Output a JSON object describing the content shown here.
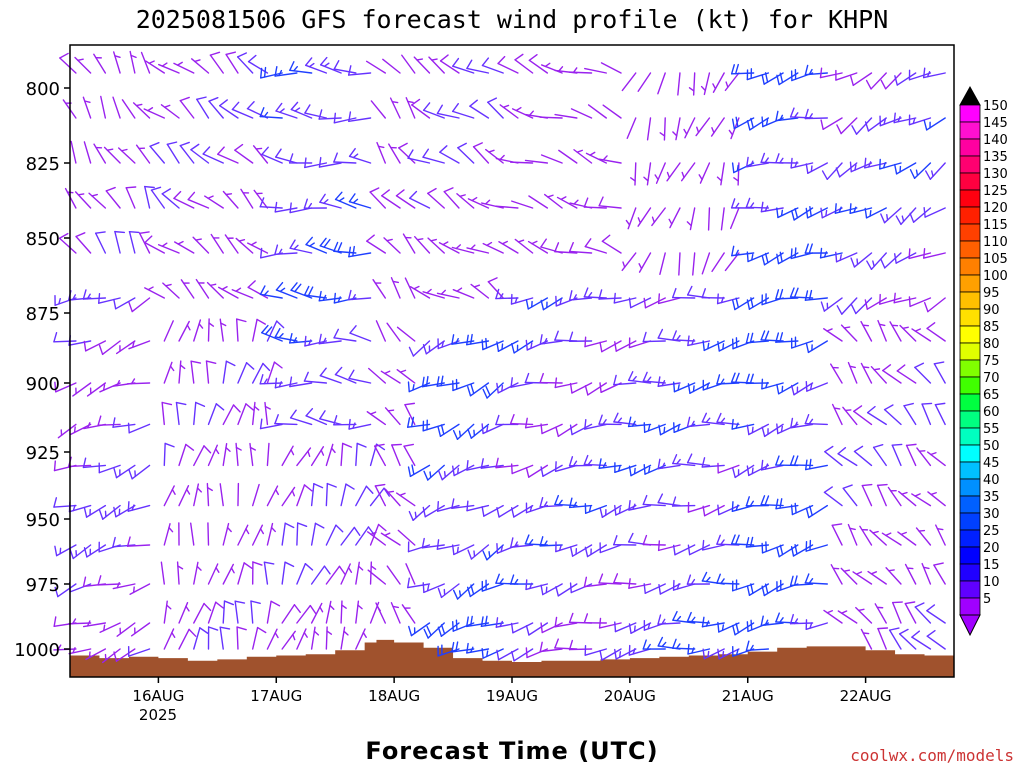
{
  "chart_data": {
    "type": "wind-barb-profile",
    "title": "2025081506 GFS forecast wind profile (kt) for KHPN",
    "xlabel": "Forecast Time (UTC)",
    "ylabel": "",
    "credit": "coolwx.com/models",
    "y_axis": {
      "type": "pressure",
      "range": [
        1010,
        792
      ],
      "ticks": [
        800,
        825,
        850,
        875,
        900,
        925,
        950,
        975,
        1000
      ],
      "tick_labels": [
        "800",
        "825",
        "850",
        "875",
        "900",
        "925",
        "950",
        "975",
        "1000"
      ]
    },
    "x_axis": {
      "range_days": [
        15.25,
        22.75
      ],
      "ticks_days": [
        16,
        17,
        18,
        19,
        20,
        21,
        22
      ],
      "tick_labels": [
        "16AUG",
        "17AUG",
        "18AUG",
        "19AUG",
        "20AUG",
        "21AUG",
        "22AUG"
      ],
      "year_label": "2025"
    },
    "levels": [
      795,
      810,
      825,
      840,
      855,
      870,
      885,
      900,
      915,
      930,
      945,
      960,
      975,
      990,
      1000
    ],
    "terrain": {
      "color": "#A0522D",
      "x_days": [
        15.25,
        15.5,
        15.75,
        16.0,
        16.25,
        16.5,
        16.75,
        17.0,
        17.25,
        17.5,
        17.75,
        17.85,
        18.0,
        18.25,
        18.5,
        18.75,
        19.0,
        19.25,
        19.5,
        19.75,
        20.0,
        20.25,
        20.5,
        20.75,
        21.0,
        21.25,
        21.5,
        21.75,
        22.0,
        22.25,
        22.5,
        22.75
      ],
      "pressure_hpa": [
        1002.5,
        1003.5,
        1003,
        1003.5,
        1004.5,
        1004,
        1003,
        1002.5,
        1002,
        1000.5,
        997.5,
        996.5,
        997.5,
        999.5,
        1003.5,
        1004.5,
        1005,
        1004.5,
        1004.5,
        1004,
        1003.5,
        1003,
        1002.5,
        1002,
        1001,
        999.5,
        999,
        999,
        1000.5,
        1002,
        1002.5,
        1001.5
      ]
    },
    "colorbar": {
      "labels": [
        "150",
        "145",
        "140",
        "135",
        "130",
        "125",
        "120",
        "115",
        "110",
        "105",
        "100",
        "95",
        "90",
        "85",
        "80",
        "75",
        "70",
        "65",
        "60",
        "55",
        "50",
        "45",
        "40",
        "35",
        "30",
        "25",
        "20",
        "15",
        "10",
        "5"
      ],
      "colors": [
        "#ff00ff",
        "#ff10d0",
        "#ff00a0",
        "#ff0070",
        "#ff0040",
        "#ff0010",
        "#ff2000",
        "#ff4000",
        "#ff6000",
        "#ff8000",
        "#ffa000",
        "#ffc000",
        "#ffe000",
        "#ffff00",
        "#e0ff00",
        "#80ff00",
        "#40ff00",
        "#00ff40",
        "#00ff80",
        "#00ffc0",
        "#00ffff",
        "#00c0ff",
        "#0090ff",
        "#0060ff",
        "#0040ff",
        "#0020ff",
        "#0000ff",
        "#2000ff",
        "#6000ff",
        "#a000ff"
      ],
      "top_arrow_color": "#000000",
      "bottom_arrow_color": "#a000ff"
    },
    "barb_colors": {
      "light": "#9a22ee",
      "mid": "#6633ff",
      "strong": "#1f3fff",
      "stronger": "#0080ff"
    },
    "wind_regimes": [
      {
        "day_from": 15.25,
        "day_to": 16.0,
        "p_from": 790,
        "p_to": 860,
        "dir_deg": 330,
        "speed_kt": 8
      },
      {
        "day_from": 15.25,
        "day_to": 16.0,
        "p_from": 860,
        "p_to": 1000,
        "dir_deg": 250,
        "speed_kt": 12
      },
      {
        "day_from": 16.0,
        "day_to": 17.0,
        "p_from": 790,
        "p_to": 880,
        "dir_deg": 310,
        "speed_kt": 9
      },
      {
        "day_from": 16.0,
        "day_to": 17.0,
        "p_from": 880,
        "p_to": 1000,
        "dir_deg": 10,
        "speed_kt": 8
      },
      {
        "day_from": 17.0,
        "day_to": 17.9,
        "p_from": 790,
        "p_to": 920,
        "dir_deg": 275,
        "speed_kt": 16
      },
      {
        "day_from": 17.0,
        "day_to": 17.9,
        "p_from": 920,
        "p_to": 1000,
        "dir_deg": 20,
        "speed_kt": 10
      },
      {
        "day_from": 17.9,
        "day_to": 18.25,
        "p_from": 790,
        "p_to": 1000,
        "dir_deg": 320,
        "speed_kt": 7
      },
      {
        "day_from": 18.25,
        "day_to": 19.0,
        "p_from": 790,
        "p_to": 870,
        "dir_deg": 300,
        "speed_kt": 10
      },
      {
        "day_from": 18.25,
        "day_to": 19.0,
        "p_from": 870,
        "p_to": 1000,
        "dir_deg": 245,
        "speed_kt": 17
      },
      {
        "day_from": 19.0,
        "day_to": 20.0,
        "p_from": 790,
        "p_to": 860,
        "dir_deg": 290,
        "speed_kt": 7
      },
      {
        "day_from": 19.0,
        "day_to": 20.0,
        "p_from": 860,
        "p_to": 1000,
        "dir_deg": 255,
        "speed_kt": 14
      },
      {
        "day_from": 20.0,
        "day_to": 21.0,
        "p_from": 790,
        "p_to": 860,
        "dir_deg": 200,
        "speed_kt": 5
      },
      {
        "day_from": 20.0,
        "day_to": 21.0,
        "p_from": 860,
        "p_to": 1000,
        "dir_deg": 260,
        "speed_kt": 15
      },
      {
        "day_from": 21.0,
        "day_to": 21.75,
        "p_from": 790,
        "p_to": 1000,
        "dir_deg": 255,
        "speed_kt": 20
      },
      {
        "day_from": 21.75,
        "day_to": 22.75,
        "p_from": 790,
        "p_to": 880,
        "dir_deg": 240,
        "speed_kt": 14
      },
      {
        "day_from": 21.75,
        "day_to": 22.75,
        "p_from": 880,
        "p_to": 1000,
        "dir_deg": 320,
        "speed_kt": 9
      }
    ]
  }
}
